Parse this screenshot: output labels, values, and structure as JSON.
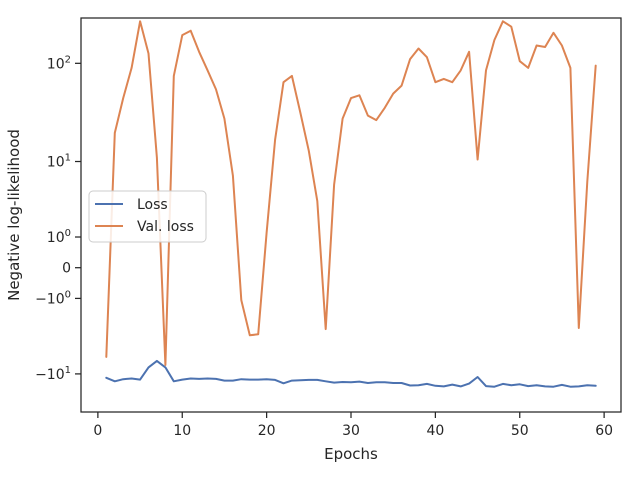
{
  "chart_data": {
    "type": "line",
    "title": "",
    "xlabel": "Epochs",
    "ylabel": "Negative log-likelihood",
    "y_scale": "symlog",
    "y_linthresh": 1,
    "xlim": [
      -2,
      62
    ],
    "ylim": [
      -25,
      280
    ],
    "x_ticks": [
      0,
      10,
      20,
      30,
      40,
      50,
      60
    ],
    "x_tick_labels": [
      "0",
      "10",
      "20",
      "30",
      "40",
      "50",
      "60"
    ],
    "y_ticks": [
      -10,
      -1,
      0,
      1,
      10,
      100
    ],
    "y_tick_labels_base": [
      "−10",
      "−10",
      "0",
      "10",
      "10",
      "10"
    ],
    "y_tick_labels_exp": [
      "1",
      "0",
      "",
      "0",
      "1",
      "2"
    ],
    "grid": false,
    "legend_position": "center-left",
    "series": [
      {
        "name": "Loss",
        "color": "#4c72b0",
        "x": [
          1,
          2,
          3,
          4,
          5,
          6,
          7,
          8,
          9,
          10,
          11,
          12,
          13,
          14,
          15,
          16,
          17,
          18,
          19,
          20,
          21,
          22,
          23,
          24,
          25,
          26,
          27,
          28,
          29,
          30,
          31,
          32,
          33,
          34,
          35,
          36,
          37,
          38,
          39,
          40,
          41,
          42,
          43,
          44,
          45,
          46,
          47,
          48,
          49,
          50,
          51,
          52,
          53,
          54,
          55,
          56,
          57,
          58,
          59
        ],
        "y": [
          -11.0,
          -12.0,
          -11.4,
          -11.2,
          -11.5,
          -8.5,
          -7.2,
          -8.5,
          -12.0,
          -11.5,
          -11.2,
          -11.3,
          -11.2,
          -11.3,
          -11.8,
          -11.8,
          -11.4,
          -11.5,
          -11.5,
          -11.4,
          -11.6,
          -12.6,
          -11.8,
          -11.7,
          -11.6,
          -11.6,
          -12.0,
          -12.4,
          -12.2,
          -12.3,
          -12.1,
          -12.5,
          -12.3,
          -12.3,
          -12.5,
          -12.5,
          -13.3,
          -13.2,
          -12.8,
          -13.4,
          -13.6,
          -13.0,
          -13.6,
          -12.7,
          -10.8,
          -13.5,
          -13.7,
          -12.8,
          -13.2,
          -12.9,
          -13.5,
          -13.2,
          -13.6,
          -13.7,
          -13.1,
          -13.7,
          -13.6,
          -13.2,
          -13.4
        ]
      },
      {
        "name": "Val. loss",
        "color": "#dd8452",
        "x": [
          1,
          2,
          3,
          4,
          5,
          6,
          7,
          8,
          9,
          10,
          11,
          12,
          13,
          14,
          15,
          16,
          17,
          18,
          19,
          20,
          21,
          22,
          23,
          24,
          25,
          26,
          27,
          28,
          29,
          30,
          31,
          32,
          33,
          34,
          35,
          36,
          37,
          38,
          39,
          40,
          41,
          42,
          43,
          44,
          45,
          46,
          47,
          48,
          49,
          50,
          51,
          52,
          53,
          54,
          55,
          56,
          57,
          58,
          59
        ],
        "y": [
          -6.5,
          20,
          45,
          90,
          260,
          125,
          11,
          -8,
          75,
          190,
          210,
          130,
          85,
          55,
          28,
          7,
          -1.08,
          -3.6,
          -3.5,
          1.2,
          17,
          65,
          75,
          32,
          13,
          3.5,
          -3.0,
          5.5,
          28,
          45,
          48,
          30,
          27,
          36,
          50,
          60,
          110,
          140,
          115,
          65,
          70,
          65,
          85,
          130,
          10.5,
          85,
          170,
          260,
          230,
          105,
          90,
          150,
          145,
          200,
          150,
          90,
          -2.9,
          6,
          95
        ]
      }
    ]
  }
}
